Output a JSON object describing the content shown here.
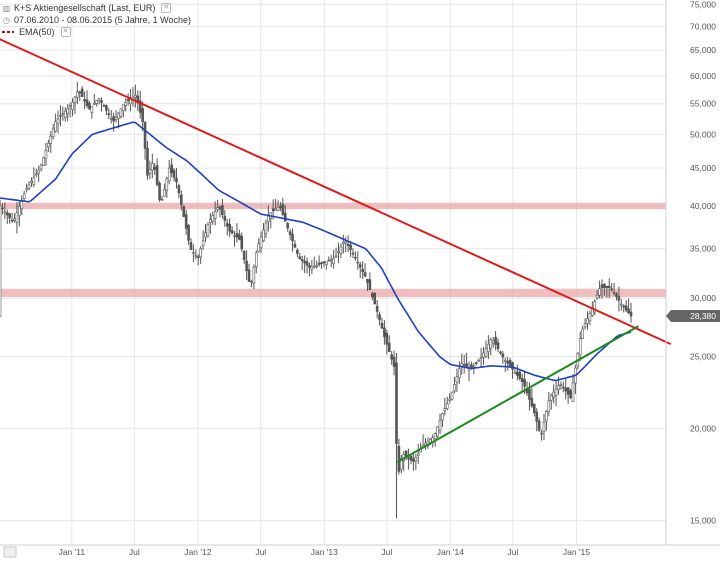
{
  "legend": {
    "title": "K+S Aktiengesellschaft (Last, EUR)",
    "period": "07.06.2010 - 08.06.2015 (5 Jahre, 1 Woche)",
    "indicator": "EMA(50)"
  },
  "last_price_label": "28,380",
  "colors": {
    "candle": "#555555",
    "ema": "#1f3fc4",
    "downtrend": "#dd1c1c",
    "uptrend": "#1b8a1b",
    "horizontal_zone": "#e9a9a9",
    "grid": "#e6e6e6",
    "price_tag": "#666666"
  },
  "chart_data": {
    "type": "candlestick",
    "title": "K+S Aktiengesellschaft (Last, EUR)",
    "subtitle": "07.06.2010 - 08.06.2015 (5 Jahre, 1 Woche)",
    "x_range": [
      "2010-06-07",
      "2015-06-08"
    ],
    "y_scale": "log",
    "ylim": [
      13.9,
      76
    ],
    "y_ticks": [
      {
        "value": 15,
        "label": "15,000"
      },
      {
        "value": 20,
        "label": "20,000"
      },
      {
        "value": 25,
        "label": "25,000"
      },
      {
        "value": 30,
        "label": "30,000"
      },
      {
        "value": 35,
        "label": "35,000"
      },
      {
        "value": 40,
        "label": "40,000"
      },
      {
        "value": 45,
        "label": "45,000"
      },
      {
        "value": 50,
        "label": "50,000"
      },
      {
        "value": 55,
        "label": "55,000"
      },
      {
        "value": 60,
        "label": "60,000"
      },
      {
        "value": 65,
        "label": "65,000"
      },
      {
        "value": 70,
        "label": "70,000"
      },
      {
        "value": 75,
        "label": "75,000"
      }
    ],
    "x_ticks": [
      {
        "date": "2011-01-01",
        "label": "Jan '11"
      },
      {
        "date": "2011-07-01",
        "label": "Jul"
      },
      {
        "date": "2012-01-01",
        "label": "Jan '12"
      },
      {
        "date": "2012-07-01",
        "label": "Jul"
      },
      {
        "date": "2013-01-01",
        "label": "Jan '13"
      },
      {
        "date": "2013-07-01",
        "label": "Jul"
      },
      {
        "date": "2014-01-01",
        "label": "Jan '14"
      },
      {
        "date": "2014-07-01",
        "label": "Jul"
      },
      {
        "date": "2015-01-01",
        "label": "Jan '15"
      }
    ],
    "price_path": [
      [
        "2010-06-07",
        40
      ],
      [
        "2010-07-15",
        38
      ],
      [
        "2010-08-20",
        42
      ],
      [
        "2010-10-01",
        45
      ],
      [
        "2010-11-15",
        52
      ],
      [
        "2011-01-01",
        55
      ],
      [
        "2011-01-20",
        57.5
      ],
      [
        "2011-02-20",
        54
      ],
      [
        "2011-03-20",
        56
      ],
      [
        "2011-05-01",
        52
      ],
      [
        "2011-06-01",
        55
      ],
      [
        "2011-07-05",
        56.5
      ],
      [
        "2011-07-25",
        52
      ],
      [
        "2011-08-08",
        44
      ],
      [
        "2011-08-25",
        46
      ],
      [
        "2011-09-15",
        40
      ],
      [
        "2011-10-10",
        45
      ],
      [
        "2011-11-01",
        43
      ],
      [
        "2011-12-10",
        35
      ],
      [
        "2012-01-01",
        34
      ],
      [
        "2012-02-01",
        38
      ],
      [
        "2012-03-01",
        40
      ],
      [
        "2012-04-01",
        37
      ],
      [
        "2012-05-01",
        36
      ],
      [
        "2012-06-01",
        31
      ],
      [
        "2012-06-20",
        35
      ],
      [
        "2012-07-25",
        39
      ],
      [
        "2012-08-25",
        40
      ],
      [
        "2012-09-20",
        37
      ],
      [
        "2012-10-20",
        34
      ],
      [
        "2012-11-20",
        33
      ],
      [
        "2013-01-01",
        33.5
      ],
      [
        "2013-02-01",
        34
      ],
      [
        "2013-03-01",
        36
      ],
      [
        "2013-04-01",
        34
      ],
      [
        "2013-05-01",
        32
      ],
      [
        "2013-06-01",
        29
      ],
      [
        "2013-06-25",
        26.5
      ],
      [
        "2013-07-25",
        24
      ],
      [
        "2013-07-31",
        17
      ],
      [
        "2013-08-15",
        18.5
      ],
      [
        "2013-09-15",
        18
      ],
      [
        "2013-10-15",
        19
      ],
      [
        "2013-11-15",
        19.5
      ],
      [
        "2013-12-10",
        21
      ],
      [
        "2014-01-01",
        22
      ],
      [
        "2014-02-01",
        24.5
      ],
      [
        "2014-03-01",
        24
      ],
      [
        "2014-04-01",
        25
      ],
      [
        "2014-05-01",
        26.5
      ],
      [
        "2014-06-01",
        25
      ],
      [
        "2014-07-01",
        24
      ],
      [
        "2014-08-01",
        23
      ],
      [
        "2014-09-01",
        21
      ],
      [
        "2014-09-20",
        19.5
      ],
      [
        "2014-10-15",
        22
      ],
      [
        "2014-11-15",
        23
      ],
      [
        "2014-12-15",
        22
      ],
      [
        "2015-01-15",
        27
      ],
      [
        "2015-02-15",
        29
      ],
      [
        "2015-03-10",
        31
      ],
      [
        "2015-04-10",
        31
      ],
      [
        "2015-05-10",
        29.5
      ],
      [
        "2015-06-08",
        28.38
      ]
    ],
    "ema_path": [
      [
        "2010-06-07",
        41
      ],
      [
        "2010-09-01",
        40.5
      ],
      [
        "2010-11-15",
        43.5
      ],
      [
        "2011-01-01",
        47
      ],
      [
        "2011-03-01",
        50
      ],
      [
        "2011-05-01",
        51
      ],
      [
        "2011-07-01",
        52
      ],
      [
        "2011-08-15",
        50
      ],
      [
        "2011-10-01",
        48
      ],
      [
        "2011-12-01",
        46
      ],
      [
        "2012-01-15",
        44
      ],
      [
        "2012-03-01",
        42
      ],
      [
        "2012-05-01",
        40.5
      ],
      [
        "2012-07-01",
        39
      ],
      [
        "2012-09-01",
        38.5
      ],
      [
        "2012-11-01",
        38
      ],
      [
        "2013-01-01",
        37
      ],
      [
        "2013-03-01",
        36
      ],
      [
        "2013-05-01",
        35
      ],
      [
        "2013-06-15",
        33
      ],
      [
        "2013-08-01",
        30
      ],
      [
        "2013-10-01",
        27
      ],
      [
        "2013-12-01",
        25
      ],
      [
        "2014-01-01",
        24.4
      ],
      [
        "2014-03-01",
        24.1
      ],
      [
        "2014-05-01",
        24.3
      ],
      [
        "2014-07-01",
        24.2
      ],
      [
        "2014-09-01",
        23.6
      ],
      [
        "2014-11-01",
        23.2
      ],
      [
        "2015-01-01",
        23.6
      ],
      [
        "2015-03-01",
        25.2
      ],
      [
        "2015-05-01",
        26.7
      ],
      [
        "2015-06-08",
        27
      ]
    ],
    "low_spike": [
      "2013-07-31",
      15.1
    ],
    "last_value": 28.38,
    "trendlines": [
      {
        "kind": "down",
        "from": [
          "2010-05-15",
          68
        ],
        "to": [
          "2015-10-01",
          26
        ]
      },
      {
        "kind": "up",
        "from": [
          "2013-07-31",
          18
        ],
        "to": [
          "2015-06-30",
          27.5
        ]
      }
    ],
    "horizontal_zones": [
      {
        "value": 40,
        "thickness": 0.8
      },
      {
        "value": 30.5,
        "thickness": 0.8
      }
    ]
  }
}
